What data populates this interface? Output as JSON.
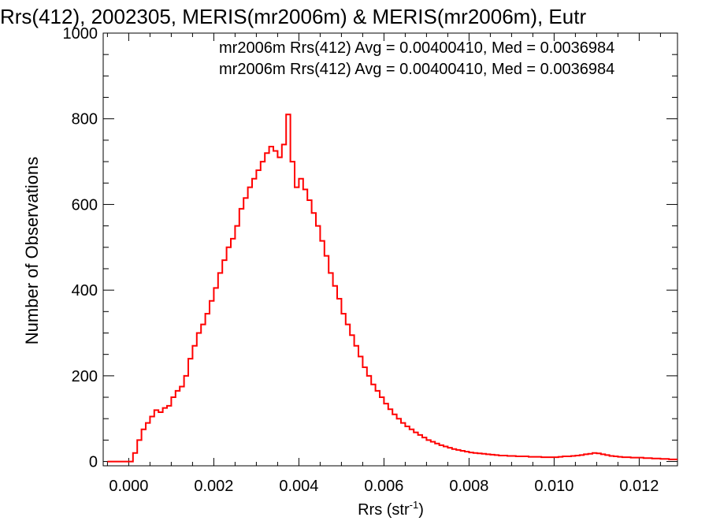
{
  "chart_data": {
    "type": "histogram",
    "title": "Rrs(412), 2002305, MERIS(mr2006m) & MERIS(mr2006m), Eutr",
    "xlabel": "Rrs (str",
    "xlabel_sup": "-1",
    "xlabel_suffix": ")",
    "ylabel": "Number of Observations",
    "xlim": [
      -0.0006,
      0.0129
    ],
    "ylim": [
      -10,
      1000
    ],
    "x_ticks": [
      0.0,
      0.002,
      0.004,
      0.006,
      0.008,
      0.01,
      0.012
    ],
    "x_tick_labels": [
      "0.000",
      "0.002",
      "0.004",
      "0.006",
      "0.008",
      "0.010",
      "0.012"
    ],
    "y_ticks": [
      0,
      200,
      400,
      600,
      800,
      1000
    ],
    "y_tick_labels": [
      "0",
      "200",
      "400",
      "600",
      "800",
      "1000"
    ],
    "annotations": [
      {
        "text": "mr2006m Rrs(412) Avg = 0.00400410, Med = 0.0036984",
        "color": "#000000"
      },
      {
        "text": "mr2006m Rrs(412) Avg = 0.00400410, Med = 0.0036984",
        "color": "#ff0000"
      }
    ],
    "series": [
      {
        "color": "#ff0000",
        "points": [
          [
            -0.0005,
            0
          ],
          [
            0.0,
            0
          ],
          [
            0.0001,
            20
          ],
          [
            0.0002,
            50
          ],
          [
            0.0003,
            75
          ],
          [
            0.0004,
            90
          ],
          [
            0.0005,
            105
          ],
          [
            0.0006,
            120
          ],
          [
            0.0007,
            115
          ],
          [
            0.0008,
            125
          ],
          [
            0.0009,
            130
          ],
          [
            0.001,
            150
          ],
          [
            0.0011,
            165
          ],
          [
            0.0012,
            175
          ],
          [
            0.0013,
            200
          ],
          [
            0.0014,
            240
          ],
          [
            0.0015,
            270
          ],
          [
            0.0016,
            300
          ],
          [
            0.0017,
            320
          ],
          [
            0.0018,
            345
          ],
          [
            0.0019,
            375
          ],
          [
            0.002,
            405
          ],
          [
            0.0021,
            440
          ],
          [
            0.0022,
            470
          ],
          [
            0.0023,
            500
          ],
          [
            0.0024,
            520
          ],
          [
            0.0025,
            550
          ],
          [
            0.0026,
            590
          ],
          [
            0.0027,
            615
          ],
          [
            0.0028,
            640
          ],
          [
            0.0029,
            660
          ],
          [
            0.003,
            680
          ],
          [
            0.0031,
            700
          ],
          [
            0.0032,
            720
          ],
          [
            0.0033,
            735
          ],
          [
            0.0034,
            725
          ],
          [
            0.0035,
            710
          ],
          [
            0.0036,
            740
          ],
          [
            0.0037,
            810
          ],
          [
            0.0038,
            700
          ],
          [
            0.0039,
            640
          ],
          [
            0.004,
            660
          ],
          [
            0.0041,
            635
          ],
          [
            0.0042,
            610
          ],
          [
            0.0043,
            580
          ],
          [
            0.0044,
            550
          ],
          [
            0.0045,
            515
          ],
          [
            0.0046,
            480
          ],
          [
            0.0047,
            440
          ],
          [
            0.0048,
            410
          ],
          [
            0.0049,
            380
          ],
          [
            0.005,
            345
          ],
          [
            0.0051,
            320
          ],
          [
            0.0052,
            295
          ],
          [
            0.0053,
            270
          ],
          [
            0.0054,
            245
          ],
          [
            0.0055,
            220
          ],
          [
            0.0056,
            200
          ],
          [
            0.0057,
            180
          ],
          [
            0.0058,
            165
          ],
          [
            0.0059,
            150
          ],
          [
            0.006,
            135
          ],
          [
            0.0061,
            122
          ],
          [
            0.0062,
            110
          ],
          [
            0.0063,
            100
          ],
          [
            0.0064,
            90
          ],
          [
            0.0065,
            82
          ],
          [
            0.0066,
            75
          ],
          [
            0.0067,
            68
          ],
          [
            0.0068,
            62
          ],
          [
            0.0069,
            56
          ],
          [
            0.007,
            50
          ],
          [
            0.0071,
            46
          ],
          [
            0.0072,
            42
          ],
          [
            0.0073,
            38
          ],
          [
            0.0074,
            35
          ],
          [
            0.0075,
            32
          ],
          [
            0.0076,
            29
          ],
          [
            0.0077,
            27
          ],
          [
            0.0078,
            25
          ],
          [
            0.0079,
            23
          ],
          [
            0.008,
            21
          ],
          [
            0.0081,
            20
          ],
          [
            0.0082,
            19
          ],
          [
            0.0083,
            18
          ],
          [
            0.0084,
            17
          ],
          [
            0.0085,
            16
          ],
          [
            0.0086,
            15
          ],
          [
            0.0087,
            14
          ],
          [
            0.0088,
            14
          ],
          [
            0.0089,
            13
          ],
          [
            0.009,
            13
          ],
          [
            0.0091,
            12
          ],
          [
            0.0092,
            12
          ],
          [
            0.0093,
            12
          ],
          [
            0.0094,
            11
          ],
          [
            0.0095,
            11
          ],
          [
            0.0096,
            11
          ],
          [
            0.0097,
            10
          ],
          [
            0.0098,
            10
          ],
          [
            0.0099,
            10
          ],
          [
            0.01,
            10
          ],
          [
            0.0101,
            11
          ],
          [
            0.0102,
            12
          ],
          [
            0.0103,
            12
          ],
          [
            0.0104,
            13
          ],
          [
            0.0105,
            14
          ],
          [
            0.0106,
            15
          ],
          [
            0.0107,
            17
          ],
          [
            0.0108,
            18
          ],
          [
            0.0109,
            20
          ],
          [
            0.011,
            19
          ],
          [
            0.0111,
            17
          ],
          [
            0.0112,
            15
          ],
          [
            0.0113,
            13
          ],
          [
            0.0114,
            12
          ],
          [
            0.0115,
            11
          ],
          [
            0.0116,
            10
          ],
          [
            0.0117,
            10
          ],
          [
            0.0118,
            9
          ],
          [
            0.0119,
            9
          ],
          [
            0.012,
            9
          ],
          [
            0.0121,
            8
          ],
          [
            0.0122,
            8
          ],
          [
            0.0123,
            7
          ],
          [
            0.0124,
            7
          ],
          [
            0.0125,
            6
          ],
          [
            0.0126,
            6
          ],
          [
            0.0127,
            5
          ],
          [
            0.0128,
            5
          ]
        ]
      }
    ]
  }
}
